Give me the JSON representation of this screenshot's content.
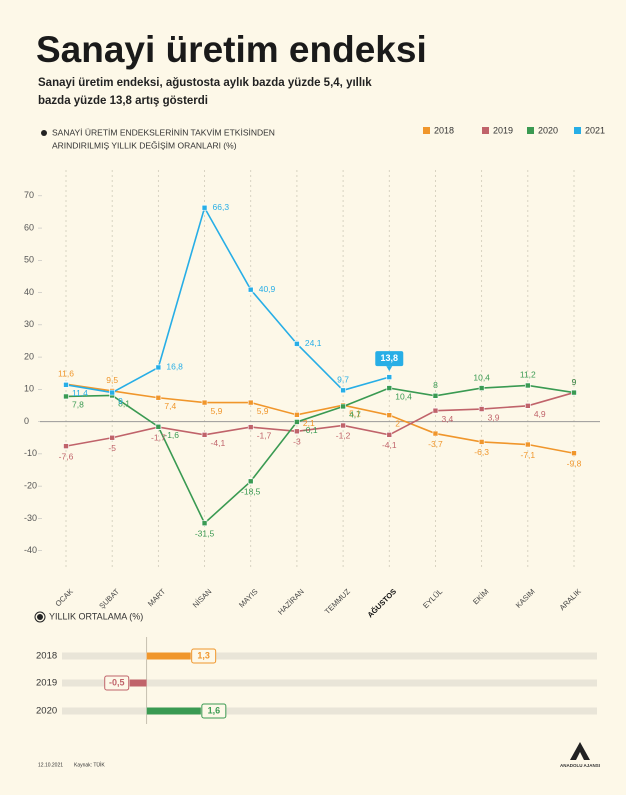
{
  "header": {
    "title": "Sanayi üretim endeksi",
    "subtitle": [
      "Sanayi üretim endeksi, ağustosta aylık bazda yüzde 5,4, yıllık",
      "bazda yüzde 13,8 artış gösterdi"
    ]
  },
  "chart_data": [
    {
      "type": "line",
      "legend_title": [
        "SANAYİ ÜRETİM ENDEKSLERİNİN TAKVİM ETKİSİNDEN",
        "ARINDIRILMIŞ YILLIK DEĞİŞİM ORANLARI (%)"
      ],
      "categories": [
        "OCAK",
        "ŞUBAT",
        "MART",
        "NİSAN",
        "MAYIS",
        "HAZİRAN",
        "TEMMUZ",
        "AĞUSTOS",
        "EYLÜL",
        "EKİM",
        "KASIM",
        "ARALIK"
      ],
      "highlight_index": 7,
      "series": [
        {
          "name": "2018",
          "color": "#f0962b",
          "values": [
            11.6,
            9.5,
            7.4,
            5.9,
            5.9,
            2.1,
            5.1,
            2,
            -3.7,
            -6.3,
            -7.1,
            -9.8
          ],
          "value_labels": [
            "11,6",
            "9,5",
            "7,4",
            "5,9",
            "5,9",
            "2,1",
            "5,1",
            "2",
            "-3,7",
            "-6,3",
            "-7,1",
            "-9,8"
          ]
        },
        {
          "name": "2019",
          "color": "#c0636a",
          "values": [
            -7.6,
            -5,
            -1.7,
            -4.1,
            -1.7,
            -3,
            -1.2,
            -4.1,
            3.4,
            3.9,
            4.9,
            9
          ],
          "value_labels": [
            "-7,6",
            "-5",
            "-1,7",
            "-4,1",
            "-1,7",
            "-3",
            "-1,2",
            "-4,1",
            "3,4",
            "3,9",
            "4,9",
            "9"
          ]
        },
        {
          "name": "2020",
          "color": "#3a9a52",
          "values": [
            7.8,
            8.1,
            -1.6,
            -31.5,
            -18.5,
            -0.1,
            4.7,
            10.4,
            8,
            10.4,
            11.2,
            9
          ],
          "value_labels": [
            "7,8",
            "8,1",
            "-1,6",
            "-31,5",
            "-18,5",
            "-0,1",
            "4,7",
            "10,4",
            "8",
            "10,4",
            "11,2",
            "9"
          ]
        },
        {
          "name": "2021",
          "color": "#27aee6",
          "values": [
            11.4,
            9,
            16.8,
            66.3,
            40.9,
            24.1,
            9.7,
            13.8,
            null,
            null,
            null,
            null
          ],
          "value_labels": [
            "11,4",
            "9",
            "16,8",
            "66,3",
            "40,9",
            "24,1",
            "9,7",
            "13,8",
            null,
            null,
            null,
            null
          ]
        }
      ],
      "ylim": [
        -46,
        78
      ],
      "yticks": [
        70,
        60,
        50,
        40,
        30,
        20,
        10,
        0,
        -10,
        -20,
        -30,
        -40
      ],
      "legend": "top-right"
    },
    {
      "type": "hbar",
      "title": "YILLIK ORTALAMA (%)",
      "categories": [
        "2018",
        "2019",
        "2020"
      ],
      "values": [
        1.3,
        -0.5,
        1.6
      ],
      "value_labels": [
        "1,3",
        "-0,5",
        "1,6"
      ],
      "colors": [
        "#f0962b",
        "#c0636a",
        "#3a9a52"
      ],
      "xlim": [
        -2.5,
        13.3
      ]
    }
  ],
  "footer": {
    "date": "12.10.2021",
    "source": "Kaynak: TÜİK",
    "logo": "ANADOLU AJANSI"
  }
}
